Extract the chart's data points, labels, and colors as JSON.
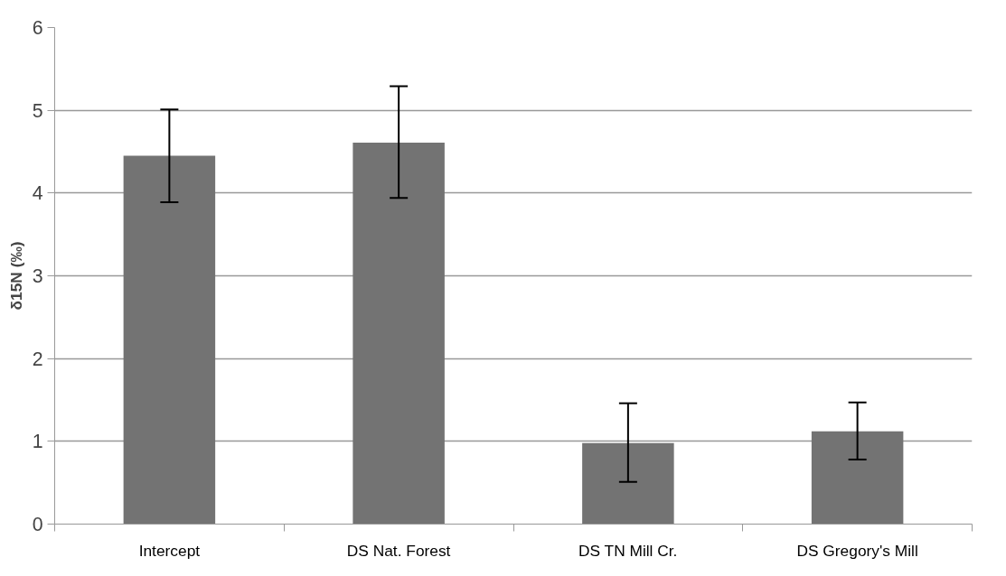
{
  "chart_data": {
    "type": "bar",
    "ylabel": "δ15N (‰)",
    "categories": [
      "Intercept",
      "DS Nat. Forest",
      "DS TN Mill Cr.",
      "DS Gregory's Mill"
    ],
    "values": [
      4.45,
      4.61,
      0.98,
      1.12
    ],
    "errors": [
      [
        3.89,
        5.01
      ],
      [
        3.94,
        5.29
      ],
      [
        0.51,
        1.46
      ],
      [
        0.78,
        1.47
      ]
    ],
    "color": "#737373",
    "ylim": [
      0,
      6
    ],
    "yticks": [
      0,
      1,
      2,
      3,
      4,
      5,
      6
    ],
    "grid": "y"
  }
}
